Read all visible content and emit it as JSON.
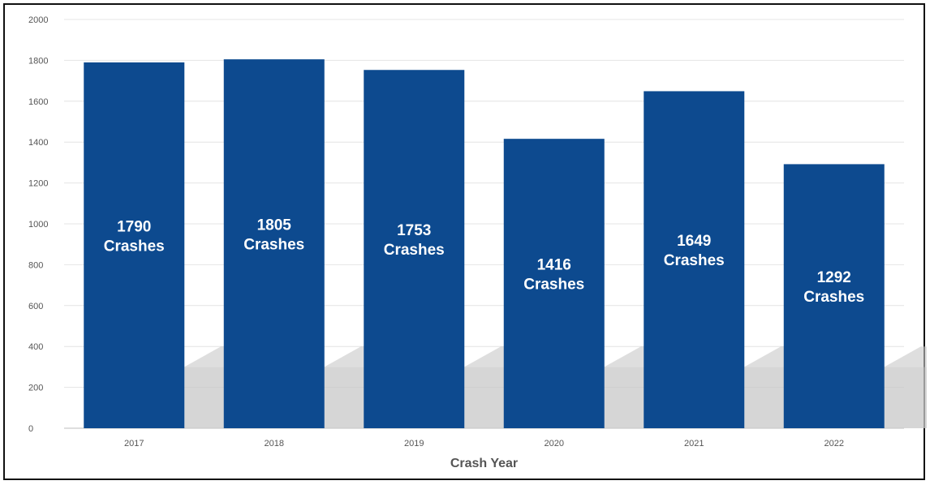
{
  "chart_data": {
    "type": "bar",
    "categories": [
      "2017",
      "2018",
      "2019",
      "2020",
      "2021",
      "2022"
    ],
    "category_labels": [
      "2017",
      "2018",
      "2019",
      "2020",
      "2021",
      "2022"
    ],
    "values": [
      1790,
      1805,
      1753,
      1416,
      1649,
      1292
    ],
    "data_labels": [
      [
        "1790",
        "Crashes"
      ],
      [
        "1805",
        "Crashes"
      ],
      [
        "1753",
        "Crashes"
      ],
      [
        "1416",
        "Crashes"
      ],
      [
        "1649",
        "Crashes"
      ],
      [
        "1292",
        "Crashes"
      ]
    ],
    "title": "",
    "xlabel": "Crash Year",
    "ylabel": "",
    "ylim": [
      0,
      2000
    ],
    "yticks": [
      0,
      200,
      400,
      600,
      800,
      1000,
      1200,
      1400,
      1600,
      1800,
      2000
    ],
    "grid": true,
    "legend": "none",
    "colors": {
      "bar": "#0d4a8f",
      "shadow": "#c8c8c8",
      "grid": "#e4e4e4",
      "label": "#ffffff"
    }
  }
}
